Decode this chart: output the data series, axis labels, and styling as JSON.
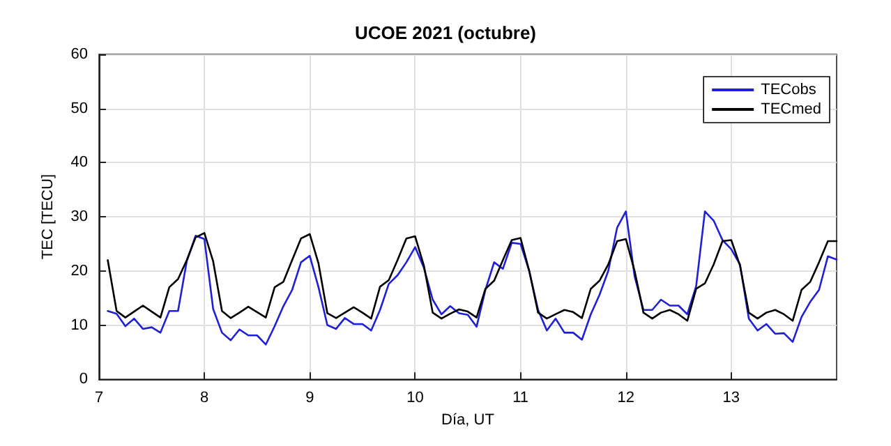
{
  "chart_data": {
    "type": "line",
    "title": "UCOE 2021 (octubre)",
    "xlabel": "Día, UT",
    "ylabel": "TEC [TECU]",
    "x": [
      7.083,
      7.167,
      7.25,
      7.333,
      7.417,
      7.5,
      7.583,
      7.667,
      7.75,
      7.833,
      7.917,
      8,
      8.083,
      8.167,
      8.25,
      8.333,
      8.417,
      8.5,
      8.583,
      8.667,
      8.75,
      8.833,
      8.917,
      9,
      9.083,
      9.167,
      9.25,
      9.333,
      9.417,
      9.5,
      9.583,
      9.667,
      9.75,
      9.833,
      9.917,
      10,
      10.083,
      10.167,
      10.25,
      10.333,
      10.417,
      10.5,
      10.583,
      10.667,
      10.75,
      10.833,
      10.917,
      11,
      11.083,
      11.167,
      11.25,
      11.333,
      11.417,
      11.5,
      11.583,
      11.667,
      11.75,
      11.833,
      11.917,
      12,
      12.083,
      12.167,
      12.25,
      12.333,
      12.417,
      12.5,
      12.583,
      12.667,
      12.75,
      12.833,
      12.917,
      13,
      13.083,
      13.167,
      13.25,
      13.333,
      13.417,
      13.5,
      13.583,
      13.667,
      13.75,
      13.833,
      13.917,
      14
    ],
    "series": [
      {
        "name": "TECobs",
        "color": "#1f1fd6",
        "values": [
          12.6,
          12.1,
          9.8,
          11.2,
          9.3,
          9.6,
          8.6,
          12.6,
          12.6,
          21.8,
          26.5,
          25.9,
          13,
          8.6,
          7.2,
          9.2,
          8.1,
          8.1,
          6.4,
          9.8,
          13.5,
          16.5,
          21.6,
          22.8,
          17,
          10,
          9.3,
          11.3,
          10.2,
          10.2,
          9,
          12.8,
          17.6,
          19.2,
          21.6,
          24.4,
          20.6,
          14.7,
          12,
          13.5,
          12.2,
          11.9,
          9.7,
          16.5,
          21.6,
          20.4,
          25.2,
          25,
          20,
          12.8,
          9,
          11.2,
          8.6,
          8.6,
          7.3,
          12,
          15.6,
          20,
          28,
          31,
          19,
          12.8,
          12.8,
          14.7,
          13.6,
          13.6,
          12,
          17.2,
          31,
          29.3,
          25.7,
          24,
          21.2,
          11.2,
          9,
          10.2,
          8.4,
          8.5,
          6.9,
          11.5,
          14.3,
          16.5,
          22.7,
          22.1
        ]
      },
      {
        "name": "TECmed",
        "color": "#000000",
        "values": [
          22,
          12.6,
          11.4,
          12.5,
          13.6,
          12.5,
          11.4,
          17,
          18.5,
          22,
          26.2,
          27,
          21.8,
          12.6,
          11.3,
          12.3,
          13.4,
          12.4,
          11.4,
          17,
          18,
          22,
          26,
          26.8,
          21.4,
          12.2,
          11.3,
          12.3,
          13.3,
          12.3,
          11.2,
          17.1,
          18.3,
          22,
          26,
          26.4,
          21,
          12.3,
          11.2,
          12.1,
          12.9,
          12.5,
          11.4,
          16.7,
          18.2,
          22,
          25.7,
          26.1,
          20,
          12.3,
          11.2,
          12,
          12.8,
          12.4,
          11.3,
          16.7,
          18.2,
          21.2,
          25.5,
          25.9,
          20,
          12.3,
          11.2,
          12.3,
          12.8,
          12,
          10.8,
          16.7,
          17.7,
          21.2,
          25.5,
          25.7,
          21,
          12.3,
          11.2,
          12.3,
          12.8,
          12,
          10.8,
          16.5,
          18,
          21.6,
          25.5,
          25.5
        ]
      }
    ],
    "xlim": [
      7,
      14
    ],
    "xticks": [
      7,
      8,
      9,
      10,
      11,
      12,
      13
    ],
    "ylim": [
      0,
      60
    ],
    "yticks": [
      0,
      10,
      20,
      30,
      40,
      50,
      60
    ],
    "grid": true,
    "legend": "top right",
    "marker": "none",
    "line_style": "solid"
  }
}
